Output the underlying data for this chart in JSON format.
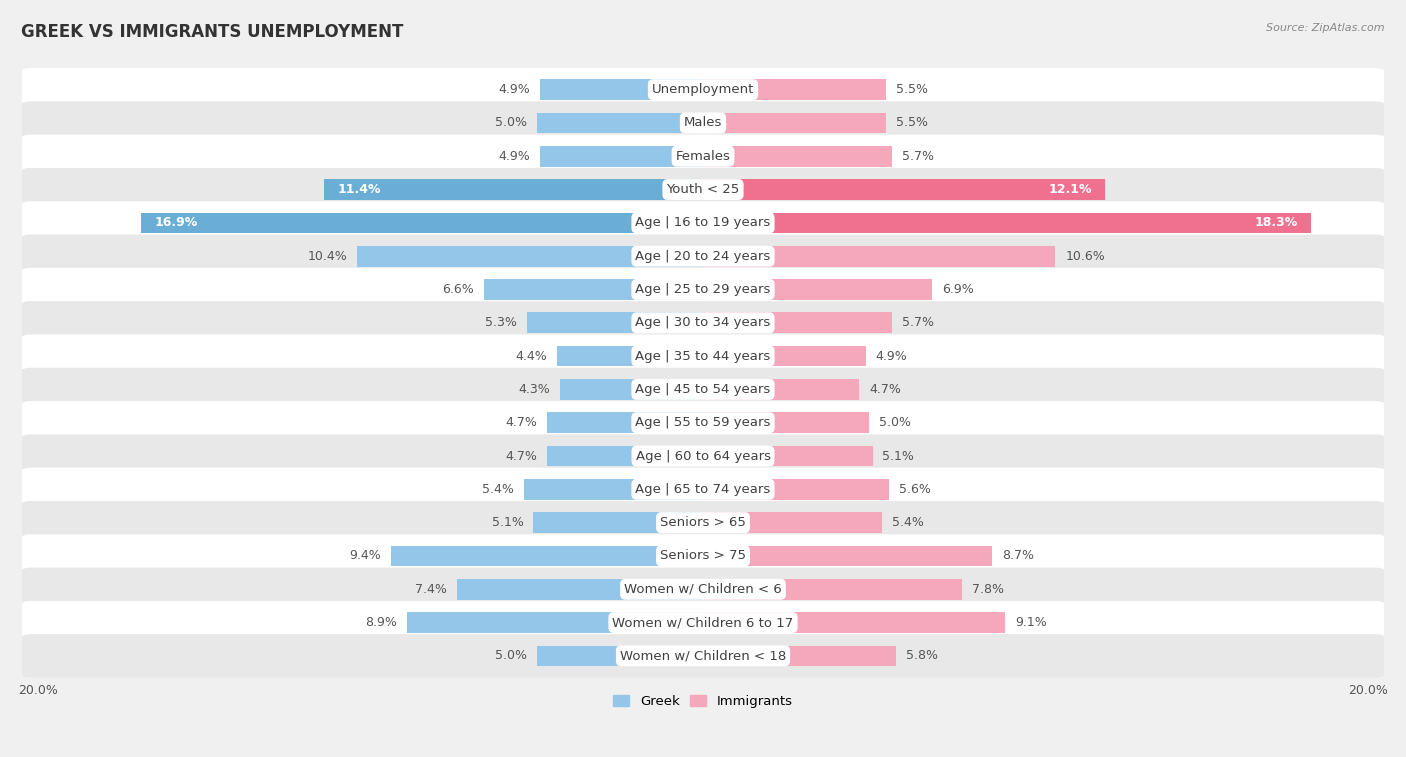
{
  "title": "GREEK VS IMMIGRANTS UNEMPLOYMENT",
  "source": "Source: ZipAtlas.com",
  "categories": [
    "Unemployment",
    "Males",
    "Females",
    "Youth < 25",
    "Age | 16 to 19 years",
    "Age | 20 to 24 years",
    "Age | 25 to 29 years",
    "Age | 30 to 34 years",
    "Age | 35 to 44 years",
    "Age | 45 to 54 years",
    "Age | 55 to 59 years",
    "Age | 60 to 64 years",
    "Age | 65 to 74 years",
    "Seniors > 65",
    "Seniors > 75",
    "Women w/ Children < 6",
    "Women w/ Children 6 to 17",
    "Women w/ Children < 18"
  ],
  "greek_values": [
    4.9,
    5.0,
    4.9,
    11.4,
    16.9,
    10.4,
    6.6,
    5.3,
    4.4,
    4.3,
    4.7,
    4.7,
    5.4,
    5.1,
    9.4,
    7.4,
    8.9,
    5.0
  ],
  "immigrant_values": [
    5.5,
    5.5,
    5.7,
    12.1,
    18.3,
    10.6,
    6.9,
    5.7,
    4.9,
    4.7,
    5.0,
    5.1,
    5.6,
    5.4,
    8.7,
    7.8,
    9.1,
    5.8
  ],
  "greek_color_normal": "#93c6e8",
  "greek_color_highlight": "#6aaed6",
  "immigrant_color_normal": "#f5a8bc",
  "immigrant_color_highlight": "#f07090",
  "immigrant_color_dark_highlight": "#e05878",
  "axis_max": 20.0,
  "bg_color": "#f0f0f0",
  "row_bg_white": "#ffffff",
  "row_bg_gray": "#e8e8e8",
  "bar_height": 0.62,
  "label_fontsize": 9.5,
  "title_fontsize": 12,
  "value_fontsize": 9,
  "highlight_rows": [
    "Youth < 25",
    "Age | 16 to 19 years"
  ]
}
